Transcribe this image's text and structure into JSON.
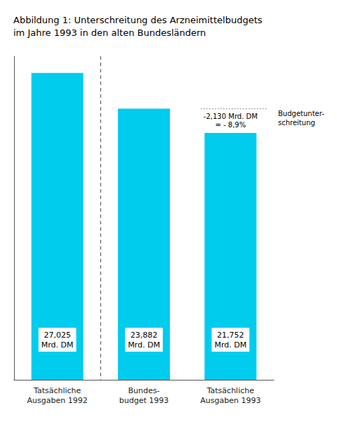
{
  "chart_data": {
    "type": "bar",
    "title": "Abbildung 1: Unterschreitung des Arzneimittelbudgets\nim Jahre 1993 in den alten Bundesländern",
    "categories": [
      "Tatsächliche\nAusgaben 1992",
      "Bundes-\nbudget 1993",
      "Tatsächliche\nAusgaben 1993"
    ],
    "values": [
      27.025,
      23.882,
      21.752
    ],
    "value_labels": [
      "27,025\nMrd. DM",
      "23,882\nMrd. DM",
      "21,752\nMrd. DM"
    ],
    "data_labels": true,
    "color": "#00CCEE",
    "ylim": [
      0,
      28.5
    ],
    "tick_labels": "x",
    "grid": false,
    "annotations": [
      "-2,130 Mrd. DM\n= - 8,9%",
      "Budgetunter-\nschreitung"
    ]
  }
}
